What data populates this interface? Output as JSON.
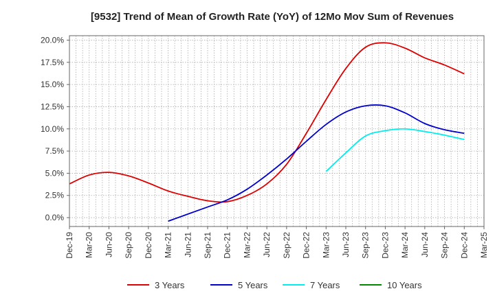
{
  "chart_data": {
    "type": "line",
    "title": "[9532]  Trend of Mean of Growth Rate (YoY) of 12Mo Mov Sum of Revenues",
    "xlabel": "",
    "ylabel": "",
    "ylim": [
      -1.0,
      20.5
    ],
    "yticks": [
      0,
      2.5,
      5,
      7.5,
      10,
      12.5,
      15,
      17.5,
      20
    ],
    "ytick_labels": [
      "0.0%",
      "2.5%",
      "5.0%",
      "7.5%",
      "10.0%",
      "12.5%",
      "15.0%",
      "17.5%",
      "20.0%"
    ],
    "x_categories": [
      "Dec-19",
      "Mar-20",
      "Jun-20",
      "Sep-20",
      "Dec-20",
      "Mar-21",
      "Jun-21",
      "Sep-21",
      "Dec-21",
      "Mar-22",
      "Jun-22",
      "Sep-22",
      "Dec-22",
      "Mar-23",
      "Jun-23",
      "Sep-23",
      "Dec-23",
      "Mar-24",
      "Jun-24",
      "Sep-24",
      "Dec-24",
      "Mar-25"
    ],
    "grid": true,
    "legend_position": "bottom",
    "series": [
      {
        "name": "3 Years",
        "color": "#dd0000",
        "points": [
          [
            0,
            3.8
          ],
          [
            1,
            4.8
          ],
          [
            2,
            5.1
          ],
          [
            3,
            4.7
          ],
          [
            4,
            3.9
          ],
          [
            5,
            3.0
          ],
          [
            6,
            2.4
          ],
          [
            7,
            1.9
          ],
          [
            8,
            1.8
          ],
          [
            9,
            2.5
          ],
          [
            10,
            3.8
          ],
          [
            11,
            6.0
          ],
          [
            12,
            9.5
          ],
          [
            13,
            13.3
          ],
          [
            14,
            16.8
          ],
          [
            15,
            19.2
          ],
          [
            16,
            19.7
          ],
          [
            17,
            19.1
          ],
          [
            18,
            18.0
          ],
          [
            19,
            17.2
          ],
          [
            20,
            16.2
          ]
        ]
      },
      {
        "name": "5 Years",
        "color": "#0000cc",
        "points": [
          [
            5,
            -0.4
          ],
          [
            6,
            0.4
          ],
          [
            7,
            1.2
          ],
          [
            8,
            2.0
          ],
          [
            9,
            3.2
          ],
          [
            10,
            4.8
          ],
          [
            11,
            6.6
          ],
          [
            12,
            8.6
          ],
          [
            13,
            10.5
          ],
          [
            14,
            11.9
          ],
          [
            15,
            12.6
          ],
          [
            16,
            12.6
          ],
          [
            17,
            11.8
          ],
          [
            18,
            10.6
          ],
          [
            19,
            9.9
          ],
          [
            20,
            9.5
          ]
        ]
      },
      {
        "name": "7 Years",
        "color": "#00eeee",
        "points": [
          [
            13,
            5.2
          ],
          [
            14,
            7.3
          ],
          [
            15,
            9.2
          ],
          [
            16,
            9.8
          ],
          [
            17,
            10.0
          ],
          [
            18,
            9.7
          ],
          [
            19,
            9.3
          ],
          [
            20,
            8.8
          ]
        ]
      },
      {
        "name": "10 Years",
        "color": "#008800",
        "points": []
      }
    ]
  }
}
